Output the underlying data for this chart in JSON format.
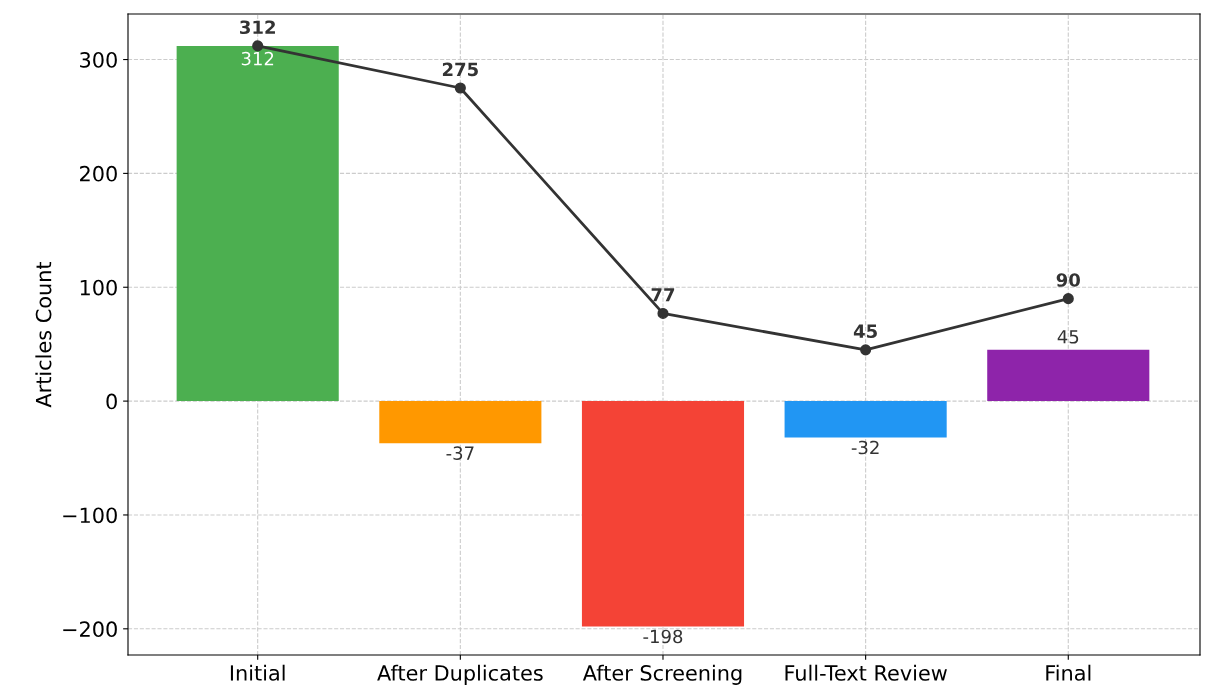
{
  "chart_data": {
    "type": "bar",
    "ylabel": "Articles Count",
    "categories": [
      "Initial",
      "After Duplicates",
      "After Screening",
      "Full-Text Review",
      "Final"
    ],
    "series": [
      {
        "colors": [
          "#4caf50",
          "#ff9800",
          "#f44336",
          "#2196f3",
          "#8e24aa"
        ],
        "values": [
          312,
          -37,
          -198,
          -32,
          45
        ]
      },
      {
        "type": "line",
        "color": "#333333",
        "marker": "circle",
        "values": [
          312,
          275,
          77,
          45,
          90
        ]
      }
    ],
    "ylim": [
      -223,
      340
    ],
    "yticks": [
      {
        "value": -200,
        "label": "−200"
      },
      {
        "value": -100,
        "label": "−100"
      },
      0,
      100,
      200,
      300
    ],
    "grid": true,
    "data_labels": true
  }
}
